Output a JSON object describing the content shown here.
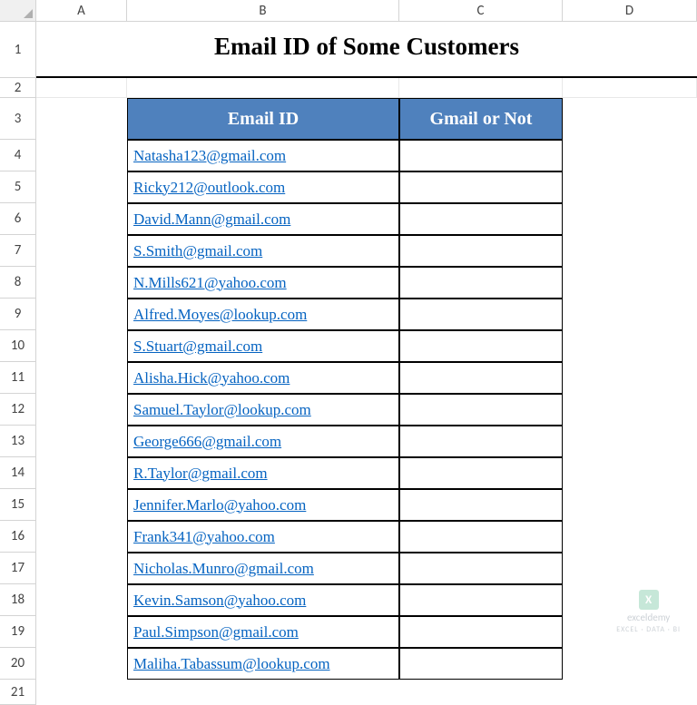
{
  "columns": [
    "A",
    "B",
    "C",
    "D"
  ],
  "title": "Email ID of Some Customers",
  "table": {
    "header_bg": "#4f81bd",
    "header_fg": "#ffffff",
    "border_color": "#000000",
    "link_color": "#0563c1",
    "columns": [
      {
        "label": "Email ID"
      },
      {
        "label": "Gmail or Not"
      }
    ],
    "rows": [
      {
        "email": "Natasha123@gmail.com",
        "gmail": ""
      },
      {
        "email": "Ricky212@outlook.com",
        "gmail": ""
      },
      {
        "email": "David.Mann@gmail.com",
        "gmail": ""
      },
      {
        "email": "S.Smith@gmail.com",
        "gmail": ""
      },
      {
        "email": "N.Mills621@yahoo.com",
        "gmail": ""
      },
      {
        "email": "Alfred.Moyes@lookup.com",
        "gmail": ""
      },
      {
        "email": "S.Stuart@gmail.com",
        "gmail": ""
      },
      {
        "email": "Alisha.Hick@yahoo.com",
        "gmail": ""
      },
      {
        "email": "Samuel.Taylor@lookup.com",
        "gmail": ""
      },
      {
        "email": "George666@gmail.com",
        "gmail": ""
      },
      {
        "email": "R.Taylor@gmail.com",
        "gmail": ""
      },
      {
        "email": "Jennifer.Marlo@yahoo.com",
        "gmail": ""
      },
      {
        "email": "Frank341@yahoo.com",
        "gmail": ""
      },
      {
        "email": "Nicholas.Munro@gmail.com",
        "gmail": ""
      },
      {
        "email": "Kevin.Samson@yahoo.com",
        "gmail": ""
      },
      {
        "email": "Paul.Simpson@gmail.com",
        "gmail": ""
      },
      {
        "email": "Maliha.Tabassum@lookup.com",
        "gmail": ""
      }
    ]
  },
  "row_numbers": {
    "title": "1",
    "spacer": "2",
    "header": "3",
    "first_data": 4,
    "after_last": "21"
  },
  "watermark": {
    "brand": "exceldemy",
    "tag": "EXCEL · DATA · BI",
    "logo_letter": "X"
  }
}
